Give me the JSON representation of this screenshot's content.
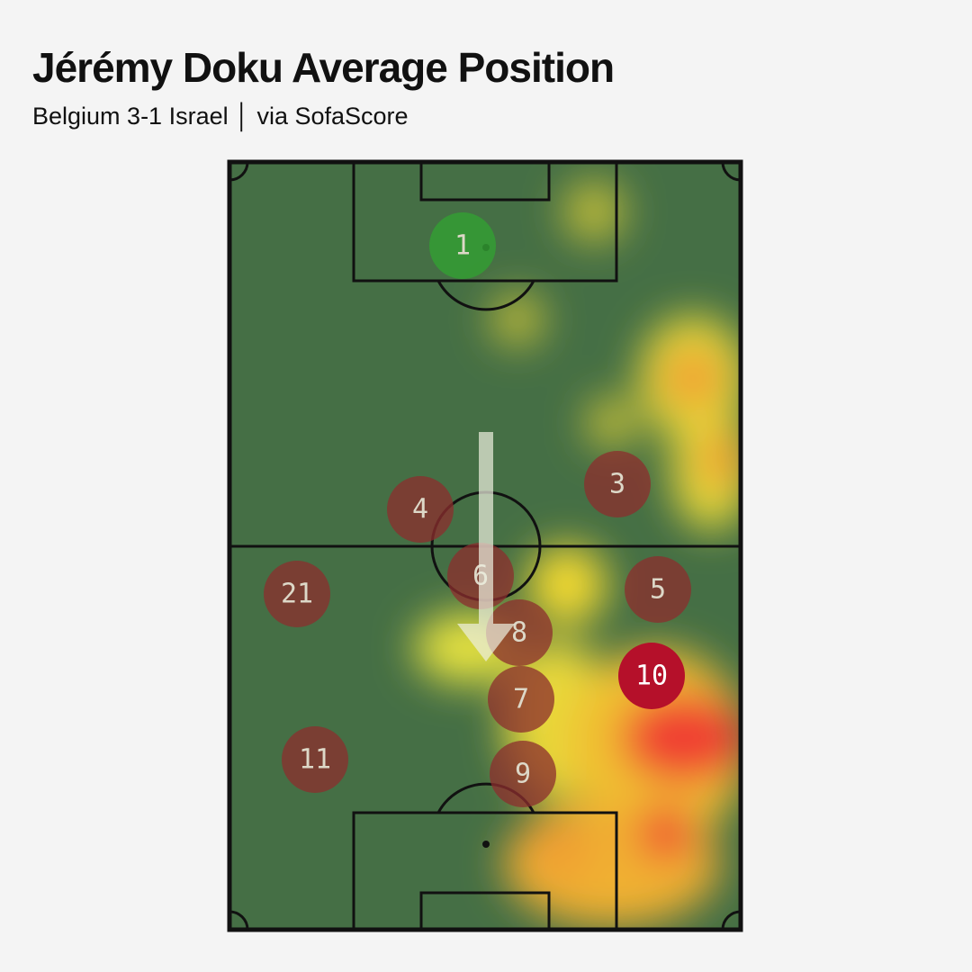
{
  "header": {
    "title": "Jérémy Doku Average Position",
    "subtitle": "Belgium 3-1 Israel │ via SofaScore"
  },
  "players": [
    "1",
    "4",
    "3",
    "6",
    "21",
    "5",
    "8",
    "10",
    "7",
    "11",
    "9"
  ]
}
